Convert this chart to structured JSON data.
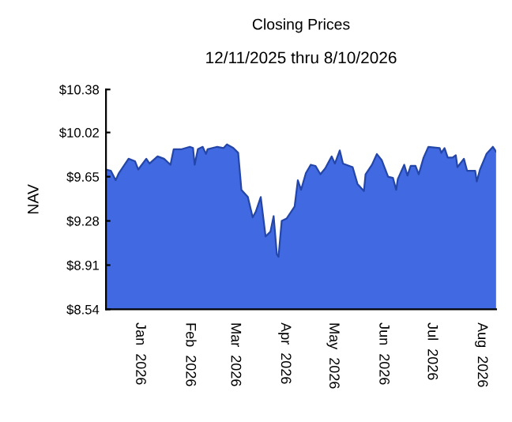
{
  "chart_data": {
    "type": "area",
    "title": "Closing Prices",
    "subtitle": "12/11/2025 thru 8/10/2026",
    "ylabel": "NAV",
    "x": [
      "2025-12-11",
      "2025-12-14",
      "2025-12-17",
      "2025-12-19",
      "2025-12-25",
      "2025-12-29",
      "2025-12-31",
      "2026-01-05",
      "2026-01-07",
      "2026-01-12",
      "2026-01-16",
      "2026-01-20",
      "2026-01-22",
      "2026-01-27",
      "2026-02-01",
      "2026-02-03",
      "2026-02-04",
      "2026-02-06",
      "2026-02-09",
      "2026-02-11",
      "2026-02-12",
      "2026-02-18",
      "2026-02-22",
      "2026-02-24",
      "2026-02-28",
      "2026-03-03",
      "2026-03-05",
      "2026-03-09",
      "2026-03-12",
      "2026-03-14",
      "2026-03-17",
      "2026-03-20",
      "2026-03-23",
      "2026-03-25",
      "2026-03-27",
      "2026-03-28",
      "2026-03-30",
      "2026-04-02",
      "2026-04-07",
      "2026-04-09",
      "2026-04-11",
      "2026-04-14",
      "2026-04-17",
      "2026-04-20",
      "2026-04-23",
      "2026-04-26",
      "2026-04-30",
      "2026-05-02",
      "2026-05-05",
      "2026-05-07",
      "2026-05-13",
      "2026-05-16",
      "2026-05-20",
      "2026-05-21",
      "2026-05-25",
      "2026-05-28",
      "2026-05-31",
      "2026-06-04",
      "2026-06-07",
      "2026-06-09",
      "2026-06-10",
      "2026-06-14",
      "2026-06-16",
      "2026-06-18",
      "2026-06-21",
      "2026-06-23",
      "2026-06-26",
      "2026-06-29",
      "2026-07-06",
      "2026-07-07",
      "2026-07-09",
      "2026-07-11",
      "2026-07-14",
      "2026-07-16",
      "2026-07-17",
      "2026-07-21",
      "2026-07-23",
      "2026-07-28",
      "2026-07-29",
      "2026-07-31",
      "2026-08-04",
      "2026-08-08",
      "2026-08-10"
    ],
    "series": [
      {
        "color": "#4169e1",
        "values": [
          9.71,
          9.7,
          9.62,
          9.68,
          9.8,
          9.78,
          9.71,
          9.8,
          9.76,
          9.82,
          9.8,
          9.75,
          9.88,
          9.88,
          9.9,
          9.89,
          9.75,
          9.88,
          9.9,
          9.84,
          9.88,
          9.9,
          9.89,
          9.92,
          9.89,
          9.85,
          9.54,
          9.48,
          9.31,
          9.36,
          9.48,
          9.15,
          9.19,
          9.32,
          9.0,
          8.98,
          9.28,
          9.3,
          9.4,
          9.62,
          9.54,
          9.68,
          9.75,
          9.74,
          9.67,
          9.72,
          9.82,
          9.76,
          9.87,
          9.76,
          9.73,
          9.59,
          9.53,
          9.67,
          9.75,
          9.84,
          9.79,
          9.65,
          9.64,
          9.54,
          9.63,
          9.75,
          9.66,
          9.74,
          9.74,
          9.67,
          9.81,
          9.9,
          9.89,
          9.85,
          9.89,
          9.81,
          9.81,
          9.83,
          9.73,
          9.8,
          9.7,
          9.7,
          9.61,
          9.71,
          9.84,
          9.9,
          9.86
        ]
      }
    ],
    "xlim": [
      "2025-12-11",
      "2026-08-10"
    ],
    "xticks": [
      {
        "value": "2026-01-01",
        "label": "Jan  2026"
      },
      {
        "value": "2026-02-01",
        "label": "Feb  2026"
      },
      {
        "value": "2026-03-01",
        "label": "Mar  2026"
      },
      {
        "value": "2026-04-01",
        "label": "Apr  2026"
      },
      {
        "value": "2026-05-01",
        "label": "May  2026"
      },
      {
        "value": "2026-06-01",
        "label": "Jun  2026"
      },
      {
        "value": "2026-07-01",
        "label": "Jul  2026"
      },
      {
        "value": "2026-08-01",
        "label": "Aug  2026"
      }
    ],
    "ylim": [
      8.54,
      10.38
    ],
    "yticks": [
      {
        "value": 8.54,
        "label": "$8.54"
      },
      {
        "value": 8.91,
        "label": "$8.91"
      },
      {
        "value": 9.28,
        "label": "$9.28"
      },
      {
        "value": 9.65,
        "label": "$9.65"
      },
      {
        "value": 10.02,
        "label": "$10.02"
      },
      {
        "value": 10.38,
        "label": "$10.38"
      }
    ],
    "grid": false,
    "legend": false
  }
}
